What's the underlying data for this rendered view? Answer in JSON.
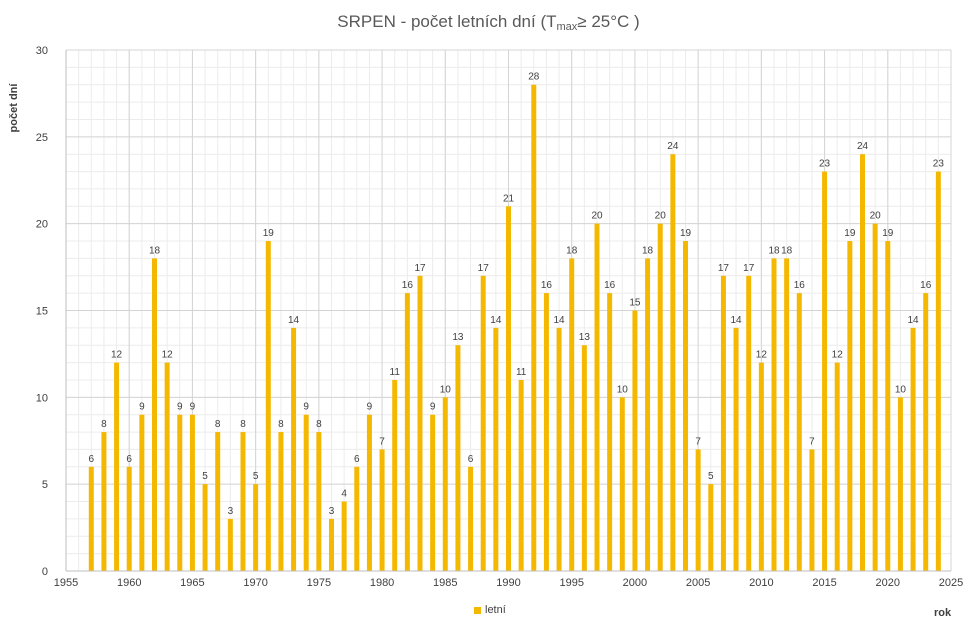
{
  "chart_data": {
    "type": "bar",
    "title": {
      "main": "SRPEN - počet letních dní (T",
      "sub": "max",
      "tail": "≥ 25°C )"
    },
    "xlabel": "rok",
    "ylabel": "počet dní",
    "xlim": [
      1955,
      2025
    ],
    "ylim": [
      0,
      30
    ],
    "x_ticks": [
      1955,
      1960,
      1965,
      1970,
      1975,
      1980,
      1985,
      1990,
      1995,
      2000,
      2005,
      2010,
      2015,
      2020,
      2025
    ],
    "y_ticks": [
      0,
      5,
      10,
      15,
      20,
      25,
      30
    ],
    "grid": "on",
    "legend_position": "bottom",
    "series": [
      {
        "name": "letní",
        "color": "#F5B800",
        "x": [
          1957,
          1958,
          1959,
          1960,
          1961,
          1962,
          1963,
          1964,
          1965,
          1966,
          1967,
          1968,
          1969,
          1970,
          1971,
          1972,
          1973,
          1974,
          1975,
          1976,
          1977,
          1978,
          1979,
          1980,
          1981,
          1982,
          1983,
          1984,
          1985,
          1986,
          1987,
          1988,
          1989,
          1990,
          1991,
          1992,
          1993,
          1994,
          1995,
          1996,
          1997,
          1998,
          1999,
          2000,
          2001,
          2002,
          2003,
          2004,
          2005,
          2006,
          2007,
          2008,
          2009,
          2010,
          2011,
          2012,
          2013,
          2014,
          2015,
          2016,
          2017,
          2018,
          2019,
          2020,
          2021,
          2022,
          2023,
          2024
        ],
        "values": [
          6,
          8,
          12,
          6,
          9,
          18,
          12,
          9,
          9,
          5,
          8,
          3,
          8,
          5,
          19,
          8,
          14,
          9,
          8,
          3,
          4,
          6,
          9,
          7,
          11,
          16,
          17,
          9,
          10,
          13,
          6,
          17,
          14,
          21,
          11,
          28,
          16,
          14,
          18,
          13,
          20,
          16,
          10,
          15,
          18,
          20,
          24,
          19,
          7,
          5,
          17,
          14,
          17,
          12,
          18,
          18,
          16,
          7,
          23,
          12,
          19,
          24,
          20,
          19,
          10,
          14,
          16,
          23
        ]
      }
    ]
  }
}
